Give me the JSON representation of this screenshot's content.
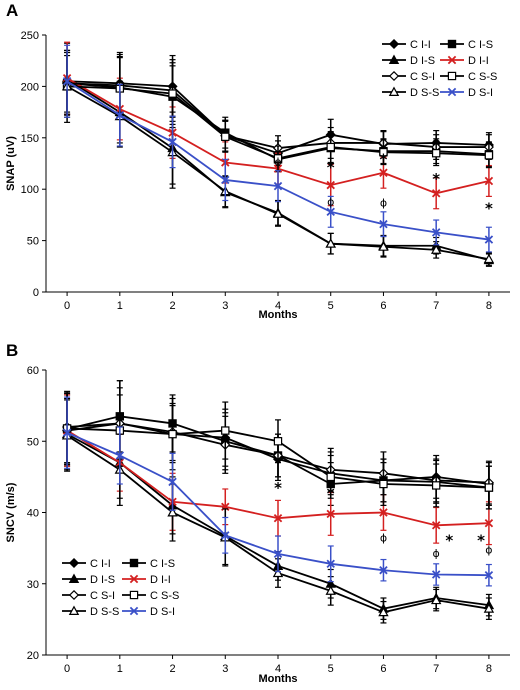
{
  "chart_data": [
    {
      "panel": "A",
      "type": "line",
      "xlabel": "Months",
      "ylabel": "SNAP (uV)",
      "x": [
        0,
        1,
        2,
        3,
        4,
        5,
        6,
        7,
        8
      ],
      "xlim": [
        -0.4,
        8.4
      ],
      "ylim": [
        0,
        250
      ],
      "xticks": [
        0,
        1,
        2,
        3,
        4,
        5,
        6,
        7,
        8
      ],
      "yticks": [
        0,
        50,
        100,
        150,
        200,
        250
      ],
      "legend_position": "top-right",
      "legend_columns": 2,
      "series": [
        {
          "name": "C I-I",
          "color": "#000000",
          "marker": "diamond-filled",
          "values": [
            205,
            203,
            200,
            152,
            135,
            153,
            144,
            145,
            143
          ],
          "errors": [
            30,
            30,
            30,
            15,
            12,
            15,
            12,
            12,
            12
          ]
        },
        {
          "name": "C I-S",
          "color": "#000000",
          "marker": "square-filled",
          "values": [
            203,
            199,
            190,
            155,
            129,
            140,
            137,
            137,
            134
          ],
          "errors": [
            30,
            30,
            30,
            15,
            12,
            15,
            12,
            12,
            12
          ]
        },
        {
          "name": "D I-S",
          "color": "#000000",
          "marker": "triangle-filled",
          "values": [
            207,
            175,
            140,
            97,
            77,
            47,
            45,
            45,
            31
          ],
          "errors": [
            35,
            30,
            35,
            15,
            12,
            10,
            10,
            8,
            6
          ]
        },
        {
          "name": "D I-I",
          "color": "#d42020",
          "marker": "x",
          "values": [
            208,
            178,
            155,
            126,
            120,
            104,
            116,
            96,
            108
          ],
          "errors": [
            35,
            30,
            25,
            20,
            15,
            20,
            15,
            15,
            15
          ]
        },
        {
          "name": "C S-I",
          "color": "#000000",
          "marker": "diamond-open",
          "values": [
            203,
            201,
            196,
            152,
            140,
            145,
            145,
            141,
            141
          ],
          "errors": [
            30,
            30,
            30,
            15,
            12,
            15,
            12,
            12,
            12
          ]
        },
        {
          "name": "C S-S",
          "color": "#000000",
          "marker": "square-open",
          "values": [
            200,
            198,
            193,
            151,
            130,
            141,
            136,
            135,
            133
          ],
          "errors": [
            30,
            30,
            30,
            15,
            12,
            15,
            12,
            12,
            12
          ]
        },
        {
          "name": "D S-S",
          "color": "#000000",
          "marker": "triangle-open",
          "values": [
            200,
            171,
            136,
            98,
            76,
            47,
            44,
            41,
            32
          ],
          "errors": [
            35,
            30,
            35,
            15,
            12,
            10,
            10,
            8,
            6
          ]
        },
        {
          "name": "D S-I",
          "color": "#3a50c8",
          "marker": "x",
          "values": [
            205,
            172,
            146,
            109,
            103,
            78,
            66,
            58,
            51
          ],
          "errors": [
            35,
            30,
            25,
            20,
            15,
            15,
            12,
            12,
            12
          ]
        }
      ],
      "annotations": [
        {
          "x": 5,
          "y": 125,
          "text": "*"
        },
        {
          "x": 6,
          "y": 133,
          "text": "*"
        },
        {
          "x": 7,
          "y": 114,
          "text": "*"
        },
        {
          "x": 8,
          "y": 85,
          "text": "*"
        },
        {
          "x": 4,
          "y": 127,
          "text": "ϕ"
        },
        {
          "x": 5,
          "y": 88,
          "text": "ϕ"
        },
        {
          "x": 6,
          "y": 87,
          "text": "ϕ"
        }
      ]
    },
    {
      "panel": "B",
      "type": "line",
      "xlabel": "Months",
      "ylabel": "SNCV (m/s)",
      "x": [
        0,
        1,
        2,
        3,
        4,
        5,
        6,
        7,
        8
      ],
      "xlim": [
        -0.4,
        8.4
      ],
      "ylim": [
        20,
        60
      ],
      "xticks": [
        0,
        1,
        2,
        3,
        4,
        5,
        6,
        7,
        8
      ],
      "yticks": [
        20,
        30,
        40,
        50,
        60
      ],
      "legend_position": "bottom-left",
      "legend_columns": 2,
      "series": [
        {
          "name": "C I-I",
          "color": "#000000",
          "marker": "diamond-filled",
          "values": [
            51.5,
            52.5,
            51.0,
            50.5,
            47.5,
            45.5,
            44.5,
            45.0,
            44.0
          ],
          "errors": [
            5,
            6,
            5,
            4,
            3,
            3,
            3,
            3,
            3
          ]
        },
        {
          "name": "C I-S",
          "color": "#000000",
          "marker": "square-filled",
          "values": [
            51.7,
            53.5,
            52.5,
            50.0,
            48.0,
            44.0,
            44.5,
            44.3,
            43.5
          ],
          "errors": [
            5,
            5,
            4,
            4,
            3,
            3,
            3,
            3,
            3
          ]
        },
        {
          "name": "D I-S",
          "color": "#000000",
          "marker": "triangle-filled",
          "values": [
            51.0,
            47.0,
            41.0,
            36.7,
            32.5,
            30.0,
            26.5,
            28.0,
            27.0
          ],
          "errors": [
            5,
            5,
            4,
            4,
            2,
            2,
            1.5,
            1.5,
            1.5
          ]
        },
        {
          "name": "D I-I",
          "color": "#d42020",
          "marker": "x",
          "values": [
            51.5,
            47.0,
            41.5,
            40.8,
            39.2,
            39.8,
            40.0,
            38.2,
            38.5
          ],
          "errors": [
            5,
            4,
            4,
            2.5,
            2.5,
            3,
            2.5,
            2.5,
            3
          ]
        },
        {
          "name": "C S-I",
          "color": "#000000",
          "marker": "diamond-open",
          "values": [
            52.0,
            52.5,
            51.3,
            49.5,
            48.0,
            46.0,
            45.5,
            44.5,
            44.2
          ],
          "errors": [
            5,
            5,
            4,
            4,
            3,
            3,
            3,
            3,
            3
          ]
        },
        {
          "name": "C S-S",
          "color": "#000000",
          "marker": "square-open",
          "values": [
            51.8,
            51.5,
            51.0,
            51.5,
            50.0,
            45.0,
            44.0,
            43.8,
            43.5
          ],
          "errors": [
            5,
            5,
            4,
            4,
            3,
            3,
            3,
            3,
            3
          ]
        },
        {
          "name": "D S-S",
          "color": "#000000",
          "marker": "triangle-open",
          "values": [
            50.8,
            46.0,
            40.0,
            36.5,
            31.5,
            29.0,
            26.0,
            27.7,
            26.5
          ],
          "errors": [
            5,
            5,
            4,
            4,
            2,
            2,
            1.5,
            1.5,
            1.5
          ]
        },
        {
          "name": "D S-I",
          "color": "#3a50c8",
          "marker": "x",
          "values": [
            51.2,
            48.0,
            44.3,
            36.8,
            34.2,
            32.8,
            31.9,
            31.3,
            31.2
          ],
          "errors": [
            5,
            4,
            4,
            2.5,
            2.5,
            2.5,
            1.5,
            1.5,
            1.5
          ]
        }
      ],
      "annotations": [
        {
          "x": 4,
          "y": 44.0,
          "text": "*"
        },
        {
          "x": 5,
          "y": 43.2,
          "text": "*"
        },
        {
          "x": 6,
          "y": 36.5,
          "text": "ϕ"
        },
        {
          "x": 7,
          "y": 34.3,
          "text": "ϕ"
        },
        {
          "x": 7.25,
          "y": 36.6,
          "text": "*"
        },
        {
          "x": 7.85,
          "y": 36.6,
          "text": "*"
        },
        {
          "x": 8,
          "y": 34.8,
          "text": "ϕ"
        }
      ]
    }
  ]
}
